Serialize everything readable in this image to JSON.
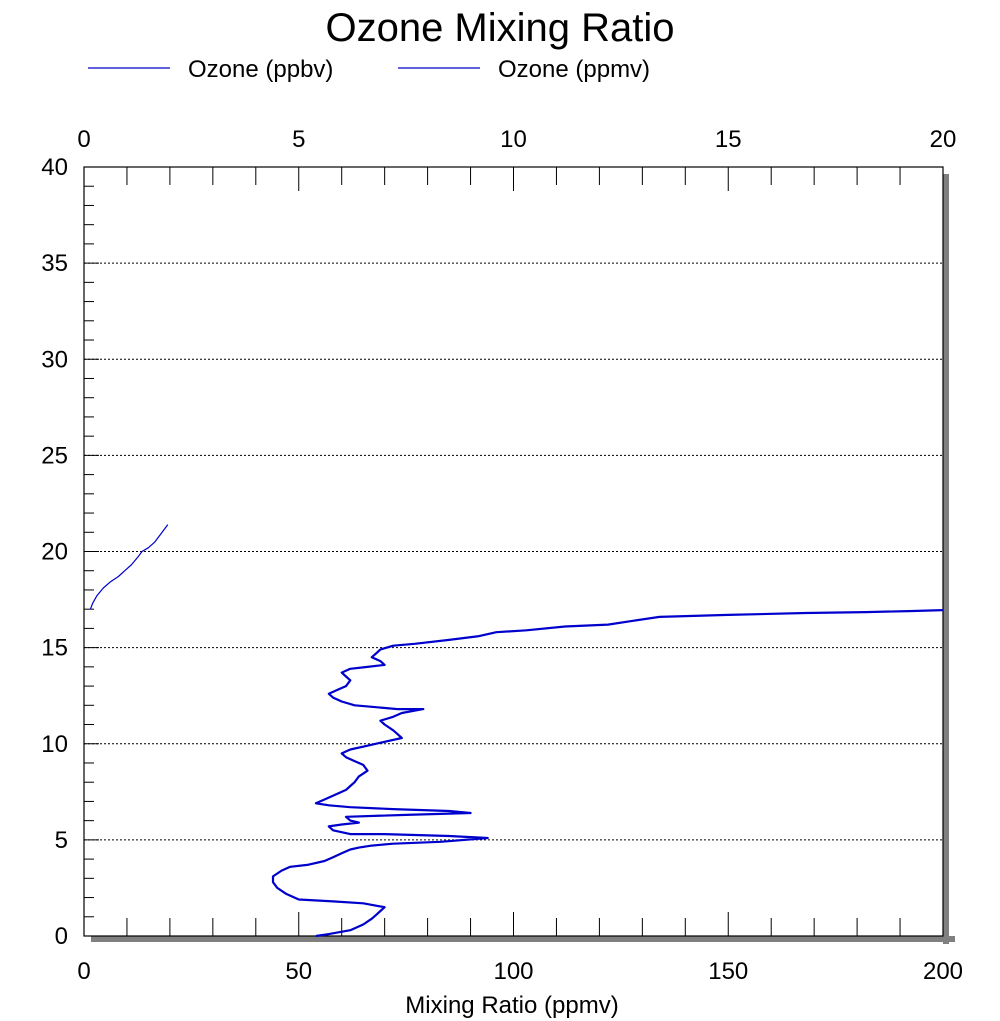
{
  "chart_data": {
    "type": "line",
    "title": "Ozone Mixing Ratio",
    "xlabel": "Mixing Ratio (ppmv)",
    "ylabel": "",
    "xlim_bottom": [
      0,
      200
    ],
    "xlim_top": [
      0,
      20
    ],
    "ylim": [
      0,
      40
    ],
    "x_ticks_bottom": [
      "0",
      "50",
      "100",
      "150",
      "200"
    ],
    "x_ticks_top": [
      "0",
      "5",
      "10",
      "15",
      "20"
    ],
    "y_ticks": [
      "0",
      "5",
      "10",
      "15",
      "20",
      "25",
      "30",
      "35",
      "40"
    ],
    "grid": "horizontal dotted",
    "legend_position": "top-left",
    "line_color": "#0000cc",
    "series": [
      {
        "name": "Ozone (ppbv)",
        "axis": "top",
        "points": [
          [
            0.15,
            17.0
          ],
          [
            0.2,
            17.3
          ],
          [
            0.3,
            17.7
          ],
          [
            0.45,
            18.1
          ],
          [
            0.6,
            18.4
          ],
          [
            0.8,
            18.7
          ],
          [
            0.95,
            19.0
          ],
          [
            1.1,
            19.3
          ],
          [
            1.25,
            19.7
          ],
          [
            1.35,
            20.0
          ],
          [
            1.5,
            20.2
          ],
          [
            1.65,
            20.5
          ],
          [
            1.75,
            20.8
          ],
          [
            1.85,
            21.1
          ],
          [
            1.95,
            21.4
          ]
        ]
      },
      {
        "name": "Ozone (ppmv)",
        "axis": "bottom",
        "points": [
          [
            54,
            0.0
          ],
          [
            57,
            0.1
          ],
          [
            62,
            0.3
          ],
          [
            65,
            0.6
          ],
          [
            67,
            0.9
          ],
          [
            68,
            1.1
          ],
          [
            69,
            1.3
          ],
          [
            70,
            1.5
          ],
          [
            65,
            1.7
          ],
          [
            58,
            1.8
          ],
          [
            50,
            1.9
          ],
          [
            47,
            2.2
          ],
          [
            45,
            2.5
          ],
          [
            44,
            2.8
          ],
          [
            44,
            3.1
          ],
          [
            46,
            3.4
          ],
          [
            48,
            3.6
          ],
          [
            52,
            3.7
          ],
          [
            56,
            3.9
          ],
          [
            58,
            4.1
          ],
          [
            60,
            4.3
          ],
          [
            62,
            4.5
          ],
          [
            64,
            4.6
          ],
          [
            67,
            4.7
          ],
          [
            72,
            4.8
          ],
          [
            83,
            4.9
          ],
          [
            94,
            5.1
          ],
          [
            85,
            5.2
          ],
          [
            70,
            5.3
          ],
          [
            62,
            5.3
          ],
          [
            58,
            5.5
          ],
          [
            57,
            5.7
          ],
          [
            60,
            5.8
          ],
          [
            64,
            5.9
          ],
          [
            62,
            6.0
          ],
          [
            61,
            6.2
          ],
          [
            75,
            6.3
          ],
          [
            90,
            6.4
          ],
          [
            85,
            6.5
          ],
          [
            72,
            6.6
          ],
          [
            62,
            6.7
          ],
          [
            57,
            6.8
          ],
          [
            54,
            6.9
          ],
          [
            56,
            7.1
          ],
          [
            59,
            7.4
          ],
          [
            61,
            7.6
          ],
          [
            62,
            7.8
          ],
          [
            63,
            8.0
          ],
          [
            64,
            8.3
          ],
          [
            66,
            8.6
          ],
          [
            65,
            8.9
          ],
          [
            63,
            9.1
          ],
          [
            61,
            9.3
          ],
          [
            60,
            9.5
          ],
          [
            62,
            9.7
          ],
          [
            66,
            9.9
          ],
          [
            70,
            10.1
          ],
          [
            74,
            10.3
          ],
          [
            73,
            10.5
          ],
          [
            72,
            10.7
          ],
          [
            70,
            11.0
          ],
          [
            69,
            11.2
          ],
          [
            72,
            11.4
          ],
          [
            74,
            11.6
          ],
          [
            79,
            11.8
          ],
          [
            73,
            11.8
          ],
          [
            68,
            11.9
          ],
          [
            63,
            12.0
          ],
          [
            60,
            12.2
          ],
          [
            58,
            12.4
          ],
          [
            57,
            12.6
          ],
          [
            59,
            12.8
          ],
          [
            61,
            13.0
          ],
          [
            62,
            13.3
          ],
          [
            61,
            13.5
          ],
          [
            60,
            13.7
          ],
          [
            62,
            13.9
          ],
          [
            66,
            14.0
          ],
          [
            70,
            14.1
          ],
          [
            69,
            14.3
          ],
          [
            67,
            14.5
          ],
          [
            68,
            14.7
          ],
          [
            69,
            14.9
          ],
          [
            72,
            15.1
          ],
          [
            77,
            15.2
          ],
          [
            85,
            15.4
          ],
          [
            92,
            15.6
          ],
          [
            96,
            15.8
          ],
          [
            103,
            15.9
          ],
          [
            112,
            16.1
          ],
          [
            122,
            16.2
          ],
          [
            128,
            16.4
          ],
          [
            134,
            16.6
          ],
          [
            150,
            16.7
          ],
          [
            168,
            16.8
          ],
          [
            182,
            16.85
          ],
          [
            192,
            16.9
          ],
          [
            200,
            16.95
          ]
        ]
      }
    ]
  }
}
